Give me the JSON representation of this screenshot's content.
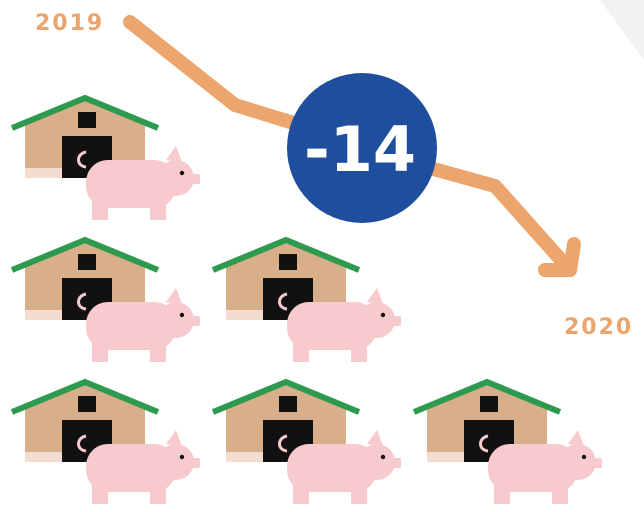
{
  "labels": {
    "start": "2019",
    "end": "2020"
  },
  "badge": "-14"
}
